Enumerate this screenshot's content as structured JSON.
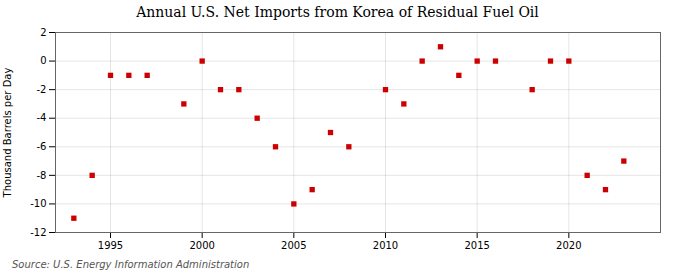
{
  "chart_data": {
    "type": "scatter",
    "title": "Annual U.S. Net Imports from Korea of Residual Fuel Oil",
    "y_label": "Thousand Barrels per Day",
    "caption": "Source: U.S. Energy Information Administration",
    "x": [
      1993,
      1994,
      1995,
      1996,
      1997,
      1999,
      2000,
      2001,
      2002,
      2003,
      2004,
      2005,
      2006,
      2007,
      2008,
      2010,
      2011,
      2012,
      2013,
      2014,
      2015,
      2016,
      2018,
      2019,
      2020,
      2021,
      2022,
      2023
    ],
    "values": [
      -11,
      -8,
      -1,
      -1,
      -1,
      -3,
      0,
      -2,
      -2,
      -4,
      -6,
      -10,
      -9,
      -5,
      -6,
      -2,
      -3,
      0,
      1,
      -1,
      0,
      0,
      -2,
      0,
      0,
      -8,
      -9,
      -7
    ],
    "color": "#cc0000",
    "marker": "square",
    "xlim": [
      1992,
      2025
    ],
    "xticks": [
      1995,
      2000,
      2005,
      2010,
      2015,
      2020
    ],
    "ylim": [
      -12,
      2
    ],
    "yticks": [
      -12,
      -10,
      -8,
      -6,
      -4,
      -2,
      0,
      2
    ],
    "grid": true
  }
}
